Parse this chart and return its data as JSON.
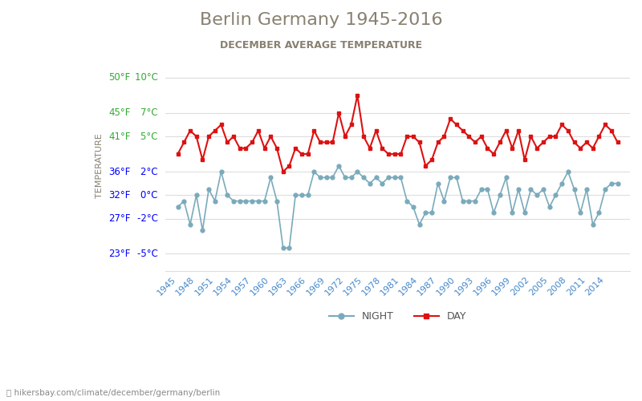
{
  "title": "Berlin Germany 1945-2016",
  "subtitle": "DECEMBER AVERAGE TEMPERATURE",
  "ylabel": "TEMPERATURE",
  "watermark": "hikersbay.com/climate/december/germany/berlin",
  "y_ticks_c": [
    -5,
    -2,
    0,
    2,
    5,
    7,
    10
  ],
  "y_ticks_f": [
    23,
    27,
    32,
    36,
    41,
    45,
    50
  ],
  "ylim": [
    -6.5,
    11.5
  ],
  "title_color": "#888070",
  "subtitle_color": "#888070",
  "ylabel_color": "#888070",
  "ytick_colors": [
    "#0000ff",
    "#0000ff",
    "#0000ff",
    "#0000ff",
    "#33aa33",
    "#33aa33",
    "#33aa33"
  ],
  "xtick_color": "#4488cc",
  "grid_color": "#dddddd",
  "night_color": "#7aaabb",
  "day_color": "#dd1111",
  "years": [
    1945,
    1946,
    1947,
    1948,
    1949,
    1950,
    1951,
    1952,
    1953,
    1954,
    1955,
    1956,
    1957,
    1958,
    1959,
    1960,
    1961,
    1962,
    1963,
    1964,
    1965,
    1966,
    1967,
    1968,
    1969,
    1970,
    1971,
    1972,
    1973,
    1974,
    1975,
    1976,
    1977,
    1978,
    1979,
    1980,
    1981,
    1982,
    1983,
    1984,
    1985,
    1986,
    1987,
    1988,
    1989,
    1990,
    1991,
    1992,
    1993,
    1994,
    1995,
    1996,
    1997,
    1998,
    1999,
    2000,
    2001,
    2002,
    2003,
    2004,
    2005,
    2006,
    2007,
    2008,
    2009,
    2010,
    2011,
    2012,
    2013,
    2014,
    2015,
    2016
  ],
  "night": [
    -1.0,
    -0.5,
    -2.5,
    0.0,
    -3.0,
    0.5,
    -0.5,
    2.0,
    0.0,
    -0.5,
    -0.5,
    -0.5,
    -0.5,
    -0.5,
    -0.5,
    1.5,
    -0.5,
    -4.5,
    -4.5,
    0.0,
    0.0,
    0.0,
    2.0,
    1.5,
    1.5,
    1.5,
    2.5,
    1.5,
    1.5,
    2.0,
    1.5,
    1.0,
    1.5,
    1.0,
    1.5,
    1.5,
    1.5,
    -0.5,
    -1.0,
    -2.5,
    -1.5,
    -1.5,
    1.0,
    -0.5,
    1.5,
    1.5,
    -0.5,
    -0.5,
    -0.5,
    0.5,
    0.5,
    -1.5,
    0.0,
    1.5,
    -1.5,
    0.5,
    -1.5,
    0.5,
    0.0,
    0.5,
    -1.0,
    0.0,
    1.0,
    2.0,
    0.5,
    -1.5,
    0.5,
    -2.5,
    -1.5,
    0.5,
    1.0,
    1.0
  ],
  "day": [
    3.5,
    4.5,
    5.5,
    5.0,
    3.0,
    5.0,
    5.5,
    6.0,
    4.5,
    5.0,
    4.0,
    4.0,
    4.5,
    5.5,
    4.0,
    5.0,
    4.0,
    2.0,
    2.5,
    4.0,
    3.5,
    3.5,
    5.5,
    4.5,
    4.5,
    4.5,
    7.0,
    5.0,
    6.0,
    8.5,
    5.0,
    4.0,
    5.5,
    4.0,
    3.5,
    3.5,
    3.5,
    5.0,
    5.0,
    4.5,
    2.5,
    3.0,
    4.5,
    5.0,
    6.5,
    6.0,
    5.5,
    5.0,
    4.5,
    5.0,
    4.0,
    3.5,
    4.5,
    5.5,
    4.0,
    5.5,
    3.0,
    5.0,
    4.0,
    4.5,
    5.0,
    5.0,
    6.0,
    5.5,
    4.5,
    4.0,
    4.5,
    4.0,
    5.0,
    6.0,
    5.5,
    4.5
  ]
}
